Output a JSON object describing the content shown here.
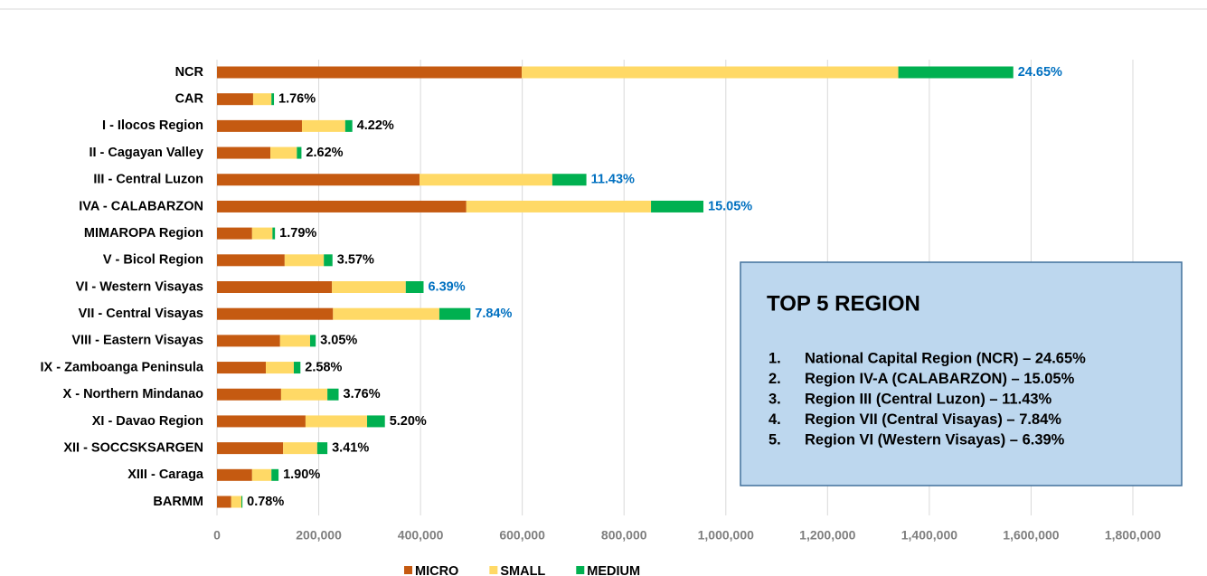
{
  "chart_data": {
    "type": "stacked_bar_horizontal",
    "categories": [
      "NCR",
      "CAR",
      "I - Ilocos Region",
      "II - Cagayan Valley",
      "III - Central Luzon",
      "IVA - CALABARZON",
      "MIMAROPA Region",
      "V - Bicol Region",
      "VI - Western Visayas",
      "VII - Central Visayas",
      "VIII - Eastern Visayas",
      "IX - Zamboanga Peninsula",
      "X - Northern Mindanao",
      "XI - Davao Region",
      "XII - SOCCSKSARGEN",
      "XIII - Caraga",
      "BARMM"
    ],
    "series": [
      {
        "name": "MICRO",
        "color": "#c55a11",
        "values": [
          599000,
          71000,
          167000,
          105000,
          398000,
          490000,
          69000,
          133000,
          226000,
          228000,
          124000,
          96000,
          126000,
          174000,
          130000,
          69000,
          28000
        ]
      },
      {
        "name": "SMALL",
        "color": "#ffd966",
        "values": [
          740000,
          36000,
          85000,
          52000,
          261000,
          363000,
          40000,
          77000,
          145000,
          209000,
          59000,
          55000,
          91000,
          121000,
          67000,
          38000,
          20000
        ]
      },
      {
        "name": "MEDIUM",
        "color": "#00b050",
        "values": [
          226000,
          5000,
          14000,
          9000,
          67000,
          103000,
          5000,
          17000,
          35000,
          61000,
          11000,
          13000,
          22000,
          35000,
          20000,
          14000,
          2000
        ]
      }
    ],
    "share_labels": [
      "24.65%",
      "1.76%",
      "4.22%",
      "2.62%",
      "11.43%",
      "15.05%",
      "1.79%",
      "3.57%",
      "6.39%",
      "7.84%",
      "3.05%",
      "2.58%",
      "3.76%",
      "5.20%",
      "3.41%",
      "1.90%",
      "0.78%"
    ],
    "share_label_colors": [
      "#0070c0",
      "#000000",
      "#000000",
      "#000000",
      "#0070c0",
      "#0070c0",
      "#000000",
      "#000000",
      "#0070c0",
      "#0070c0",
      "#000000",
      "#000000",
      "#000000",
      "#000000",
      "#000000",
      "#000000",
      "#000000"
    ],
    "xlim": [
      0,
      1800000
    ],
    "xticks": [
      0,
      {
        "value": 200000,
        "label": "200,000"
      },
      {
        "value": 400000,
        "label": "400,000"
      },
      {
        "value": 600000,
        "label": "600,000"
      },
      {
        "value": 800000,
        "label": "800,000"
      },
      {
        "value": 1000000,
        "label": "1,000,000"
      },
      {
        "value": 1200000,
        "label": "1,200,000"
      },
      {
        "value": 1400000,
        "label": "1,400,000"
      },
      {
        "value": 1600000,
        "label": "1,600,000"
      },
      {
        "value": 1800000,
        "label": "1,800,000"
      }
    ],
    "grid": true,
    "legend": "bottom"
  },
  "info_box": {
    "title": "TOP 5 REGION",
    "items": [
      {
        "num": "1.",
        "text": "National Capital Region (NCR) – 24.65%"
      },
      {
        "num": "2.",
        "text": "Region IV-A (CALABARZON) – 15.05%"
      },
      {
        "num": "3.",
        "text": "Region III (Central Luzon) – 11.43%"
      },
      {
        "num": "4.",
        "text": "Region VII (Central Visayas) – 7.84%"
      },
      {
        "num": "5.",
        "text": "Region VI (Western Visayas) – 6.39%"
      }
    ]
  }
}
